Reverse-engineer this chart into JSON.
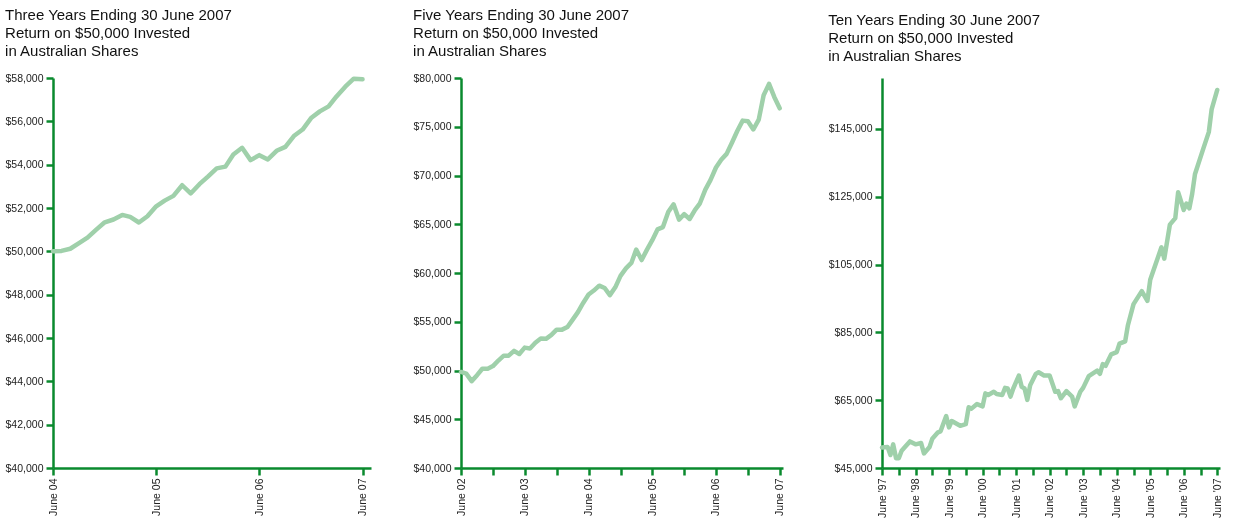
{
  "chart_data": [
    {
      "type": "line",
      "title": "Three Years Ending 30 June 2007\nReturn on $50,000 Invested\nin Australian Shares",
      "grid": false,
      "marker": "none",
      "line_style": "solid",
      "x": [
        "2004-06",
        "2004-07",
        "2004-08",
        "2004-09",
        "2004-10",
        "2004-11",
        "2004-12",
        "2005-01",
        "2005-02",
        "2005-03",
        "2005-04",
        "2005-05",
        "2005-06",
        "2005-07",
        "2005-08",
        "2005-09",
        "2005-10",
        "2005-11",
        "2005-12",
        "2006-01",
        "2006-02",
        "2006-03",
        "2006-04",
        "2006-05",
        "2006-06",
        "2006-07",
        "2006-08",
        "2006-09",
        "2006-10",
        "2006-11",
        "2006-12",
        "2007-01",
        "2007-02",
        "2007-03",
        "2007-04",
        "2007-05",
        "2007-06"
      ],
      "series": [
        {
          "color": "#9fd0aa",
          "values": [
            50000,
            50020,
            50120,
            50380,
            50630,
            51000,
            51340,
            51470,
            51680,
            51590,
            51330,
            51620,
            52080,
            52340,
            52560,
            53050,
            52670,
            53100,
            53450,
            53830,
            53910,
            54470,
            54780,
            54210,
            54440,
            54240,
            54640,
            54820,
            55320,
            55620,
            56150,
            56460,
            56690,
            57150,
            57600,
            57970,
            57940
          ]
        }
      ],
      "xlim": [
        "2004-06",
        "2007-07"
      ],
      "xticks": [
        {
          "value": "2004-06",
          "label": "June 04"
        },
        {
          "value": "2005-06",
          "label": "June 05"
        },
        {
          "value": "2006-06",
          "label": "June 06"
        },
        {
          "value": "2007-06",
          "label": "June 07"
        }
      ],
      "ylim": [
        40000,
        58000
      ],
      "yticks": [
        {
          "value": 40000,
          "label": "$40,000"
        },
        {
          "value": 42000,
          "label": "$42,000"
        },
        {
          "value": 44000,
          "label": "$44,000"
        },
        {
          "value": 46000,
          "label": "$46,000"
        },
        {
          "value": 48000,
          "label": "$48,000"
        },
        {
          "value": 50000,
          "label": "$50,000"
        },
        {
          "value": 52000,
          "label": "$52,000"
        },
        {
          "value": 54000,
          "label": "$54,000"
        },
        {
          "value": 56000,
          "label": "$56,000"
        },
        {
          "value": 58000,
          "label": "$58,000"
        }
      ]
    },
    {
      "type": "line",
      "title": "Five Years Ending 30 June 2007\nReturn on $50,000 Invested\nin Australian Shares",
      "grid": false,
      "marker": "none",
      "line_style": "solid",
      "x": [
        "2002-06",
        "2002-07",
        "2002-08",
        "2002-09",
        "2002-10",
        "2002-11",
        "2002-12",
        "2003-01",
        "2003-02",
        "2003-03",
        "2003-04",
        "2003-05",
        "2003-06",
        "2003-07",
        "2003-08",
        "2003-09",
        "2003-10",
        "2003-11",
        "2003-12",
        "2004-01",
        "2004-02",
        "2004-03",
        "2004-04",
        "2004-05",
        "2004-06",
        "2004-07",
        "2004-08",
        "2004-09",
        "2004-10",
        "2004-11",
        "2004-12",
        "2005-01",
        "2005-02",
        "2005-03",
        "2005-04",
        "2005-05",
        "2005-06",
        "2005-07",
        "2005-08",
        "2005-09",
        "2005-10",
        "2005-11",
        "2005-12",
        "2006-01",
        "2006-02",
        "2006-03",
        "2006-04",
        "2006-05",
        "2006-06",
        "2006-07",
        "2006-08",
        "2006-09",
        "2006-10",
        "2006-11",
        "2006-12",
        "2007-01",
        "2007-02",
        "2007-03",
        "2007-04",
        "2007-05",
        "2007-06"
      ],
      "series": [
        {
          "color": "#9fd0aa",
          "values": [
            49850,
            49680,
            48910,
            49520,
            50180,
            50180,
            50450,
            51020,
            51520,
            51520,
            52020,
            51690,
            52350,
            52250,
            52850,
            53280,
            53250,
            53650,
            54190,
            54190,
            54460,
            55190,
            55990,
            56930,
            57800,
            58200,
            58700,
            58460,
            57730,
            58530,
            59700,
            60470,
            61030,
            62400,
            61330,
            62370,
            63370,
            64470,
            64710,
            66280,
            67040,
            65480,
            66040,
            65540,
            66480,
            67150,
            68550,
            69550,
            70820,
            71620,
            72220,
            73390,
            74560,
            75630,
            75560,
            74720,
            75730,
            78230,
            79400,
            78060,
            76890
          ]
        }
      ],
      "xlim": [
        "2002-06",
        "2007-06-20"
      ],
      "xticks": [
        {
          "value": "2002-06",
          "label": "June 02"
        },
        {
          "value": "2002-12",
          "label": null
        },
        {
          "value": "2003-06",
          "label": "June 03"
        },
        {
          "value": "2003-12",
          "label": null
        },
        {
          "value": "2004-06",
          "label": "June 04"
        },
        {
          "value": "2004-12",
          "label": null
        },
        {
          "value": "2005-06",
          "label": "June 05"
        },
        {
          "value": "2005-12",
          "label": null
        },
        {
          "value": "2006-06",
          "label": "June 06"
        },
        {
          "value": "2006-12",
          "label": null
        },
        {
          "value": "2007-06",
          "label": "June 07"
        }
      ],
      "ylim": [
        40000,
        80000
      ],
      "yticks": [
        {
          "value": 40000,
          "label": "$40,000"
        },
        {
          "value": 45000,
          "label": "$45,000"
        },
        {
          "value": 50000,
          "label": "$50,000"
        },
        {
          "value": 55000,
          "label": "$55,000"
        },
        {
          "value": 60000,
          "label": "$60,000"
        },
        {
          "value": 65000,
          "label": "$65,000"
        },
        {
          "value": 70000,
          "label": "$70,000"
        },
        {
          "value": 75000,
          "label": "$75,000"
        },
        {
          "value": 80000,
          "label": "$80,000"
        }
      ]
    },
    {
      "type": "line",
      "title": "Ten Years Ending 30 June 2007\nReturn on $50,000 Invested\nin Australian Shares",
      "grid": false,
      "marker": "none",
      "line_style": "solid",
      "x": [
        "1997-06",
        "1997-08",
        "1997-09",
        "1997-10",
        "1997-11",
        "1997-12",
        "1998-01",
        "1998-02",
        "1998-04",
        "1998-06",
        "1998-08",
        "1998-09",
        "1998-11",
        "1998-12",
        "1999-02",
        "1999-03",
        "1999-05",
        "1999-06",
        "1999-07",
        "1999-10",
        "1999-12",
        "2000-01",
        "2000-02",
        "2000-04",
        "2000-06",
        "2000-07",
        "2000-08",
        "2000-10",
        "2000-11",
        "2001-01",
        "2001-02",
        "2001-03",
        "2001-04",
        "2001-05",
        "2001-07",
        "2001-08",
        "2001-09",
        "2001-10",
        "2001-11",
        "2002-01",
        "2002-02",
        "2002-04",
        "2002-06",
        "2002-08",
        "2002-09",
        "2002-10",
        "2002-12",
        "2003-02",
        "2003-03",
        "2003-05",
        "2003-06",
        "2003-08",
        "2003-11",
        "2003-12",
        "2004-01",
        "2004-02",
        "2004-04",
        "2004-06",
        "2004-07",
        "2004-09",
        "2004-10",
        "2004-12",
        "2005-03",
        "2005-05",
        "2005-06",
        "2005-08",
        "2005-10",
        "2005-11",
        "2006-01",
        "2006-03",
        "2006-04",
        "2006-06",
        "2006-07",
        "2006-08",
        "2006-09",
        "2006-10",
        "2007-01",
        "2007-03",
        "2007-04",
        "2007-06"
      ],
      "series": [
        {
          "color": "#9fd0aa",
          "values": [
            51020,
            51210,
            48820,
            51980,
            47870,
            47870,
            50070,
            51020,
            52840,
            51980,
            52360,
            49300,
            51210,
            53610,
            55520,
            55810,
            60310,
            56960,
            58870,
            57440,
            57920,
            62890,
            62510,
            63850,
            63180,
            67010,
            66530,
            67480,
            66810,
            66530,
            68630,
            68440,
            66050,
            68440,
            72270,
            68920,
            68440,
            65090,
            69400,
            72750,
            73220,
            72270,
            72270,
            67480,
            67670,
            65560,
            67670,
            66050,
            63180,
            67480,
            68630,
            72080,
            73700,
            72750,
            75620,
            75140,
            78490,
            79160,
            81650,
            82320,
            87100,
            93320,
            97150,
            94280,
            100500,
            105280,
            110070,
            106720,
            116770,
            118680,
            126340,
            121080,
            123000,
            121560,
            125860,
            131600,
            139260,
            144040,
            150740,
            156480
          ]
        }
      ],
      "xlim": [
        "1997-06",
        "2007-07"
      ],
      "xticks": [
        {
          "value": "1997-06",
          "label": "June '97"
        },
        {
          "value": "1997-12",
          "label": null
        },
        {
          "value": "1998-06",
          "label": "June '98"
        },
        {
          "value": "1998-12",
          "label": null
        },
        {
          "value": "1999-06",
          "label": "June '99"
        },
        {
          "value": "1999-12",
          "label": null
        },
        {
          "value": "2000-06",
          "label": "June '00"
        },
        {
          "value": "2000-12",
          "label": null
        },
        {
          "value": "2001-06",
          "label": "June '01"
        },
        {
          "value": "2001-12",
          "label": null
        },
        {
          "value": "2002-06",
          "label": "June '02"
        },
        {
          "value": "2002-12",
          "label": null
        },
        {
          "value": "2003-06",
          "label": "June '03"
        },
        {
          "value": "2003-12",
          "label": null
        },
        {
          "value": "2004-06",
          "label": "June '04"
        },
        {
          "value": "2004-12",
          "label": null
        },
        {
          "value": "2005-06",
          "label": "June '05"
        },
        {
          "value": "2005-12",
          "label": null
        },
        {
          "value": "2006-06",
          "label": "June '06"
        },
        {
          "value": "2006-12",
          "label": null
        },
        {
          "value": "2007-06",
          "label": "June '07"
        }
      ],
      "ylim": [
        45000,
        160000
      ],
      "yticks": [
        {
          "value": 45000,
          "label": "$45,000"
        },
        {
          "value": 65000,
          "label": "$65,000"
        },
        {
          "value": 85000,
          "label": "$85,000"
        },
        {
          "value": 105000,
          "label": "$105,000"
        },
        {
          "value": 125000,
          "label": "$125,000"
        },
        {
          "value": 145000,
          "label": "$145,000"
        }
      ]
    }
  ]
}
